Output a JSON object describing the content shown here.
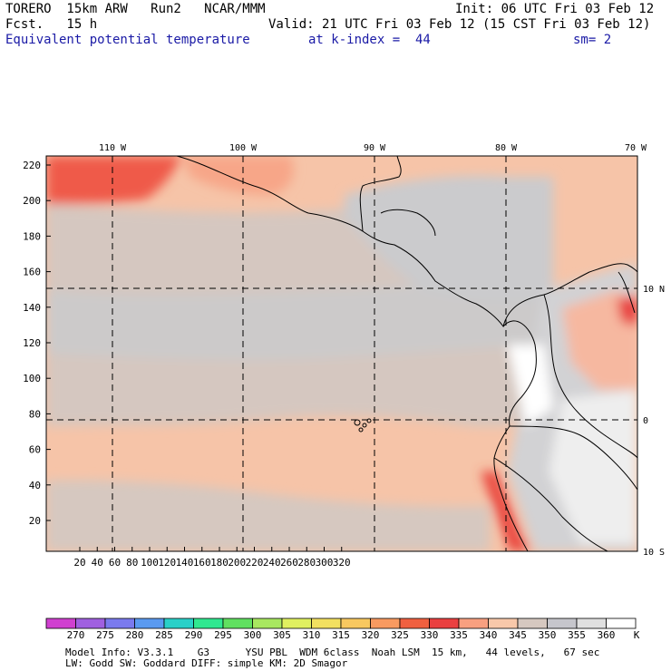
{
  "header": {
    "model": "TORERO  15km ARW   Run2   NCAR/MMM",
    "init": "Init: 06 UTC Fri 03 Feb 12",
    "fcst": "Fcst.   15 h",
    "valid": "Valid: 21 UTC Fri 03 Feb 12 (15 CST Fri 03 Feb 12)",
    "field": "Equivalent potential temperature",
    "level": "at k-index =  44",
    "smooth": "sm= 2"
  },
  "map": {
    "lon_labels": [
      "110 W",
      "100 W",
      "90 W",
      "80 W",
      "70 W"
    ],
    "lat_labels": [
      "10 N",
      "0",
      "10 S"
    ],
    "x_ticks": [
      "20",
      "40",
      "60",
      "80",
      "100",
      "120",
      "140",
      "160",
      "180",
      "200",
      "220",
      "240",
      "260",
      "280",
      "300",
      "320"
    ],
    "y_ticks": [
      "220",
      "200",
      "180",
      "160",
      "140",
      "120",
      "100",
      "80",
      "60",
      "40",
      "20"
    ]
  },
  "colorbar": {
    "unit": "K",
    "labels": [
      "270",
      "275",
      "280",
      "285",
      "290",
      "295",
      "300",
      "305",
      "310",
      "315",
      "320",
      "325",
      "330",
      "335",
      "340",
      "345",
      "350",
      "355",
      "360"
    ],
    "colors": [
      "#d040d0",
      "#a060e0",
      "#7a7aee",
      "#5a9af0",
      "#2ad0c8",
      "#30e890",
      "#60e060",
      "#a8e860",
      "#e0f060",
      "#f2e060",
      "#f8c860",
      "#f89a60",
      "#f06040",
      "#ea4040",
      "#f8a080",
      "#f8c8aa",
      "#d6c8c0",
      "#c6c6cc",
      "#e0e0e0",
      "#ffffff"
    ]
  },
  "footer": {
    "line1": "Model Info: V3.3.1    G3      YSU PBL  WDM 6class  Noah LSM  15 km,   44 levels,   67 sec",
    "line2": "LW: Godd SW: Goddard DIFF: simple KM: 2D Smagor"
  }
}
